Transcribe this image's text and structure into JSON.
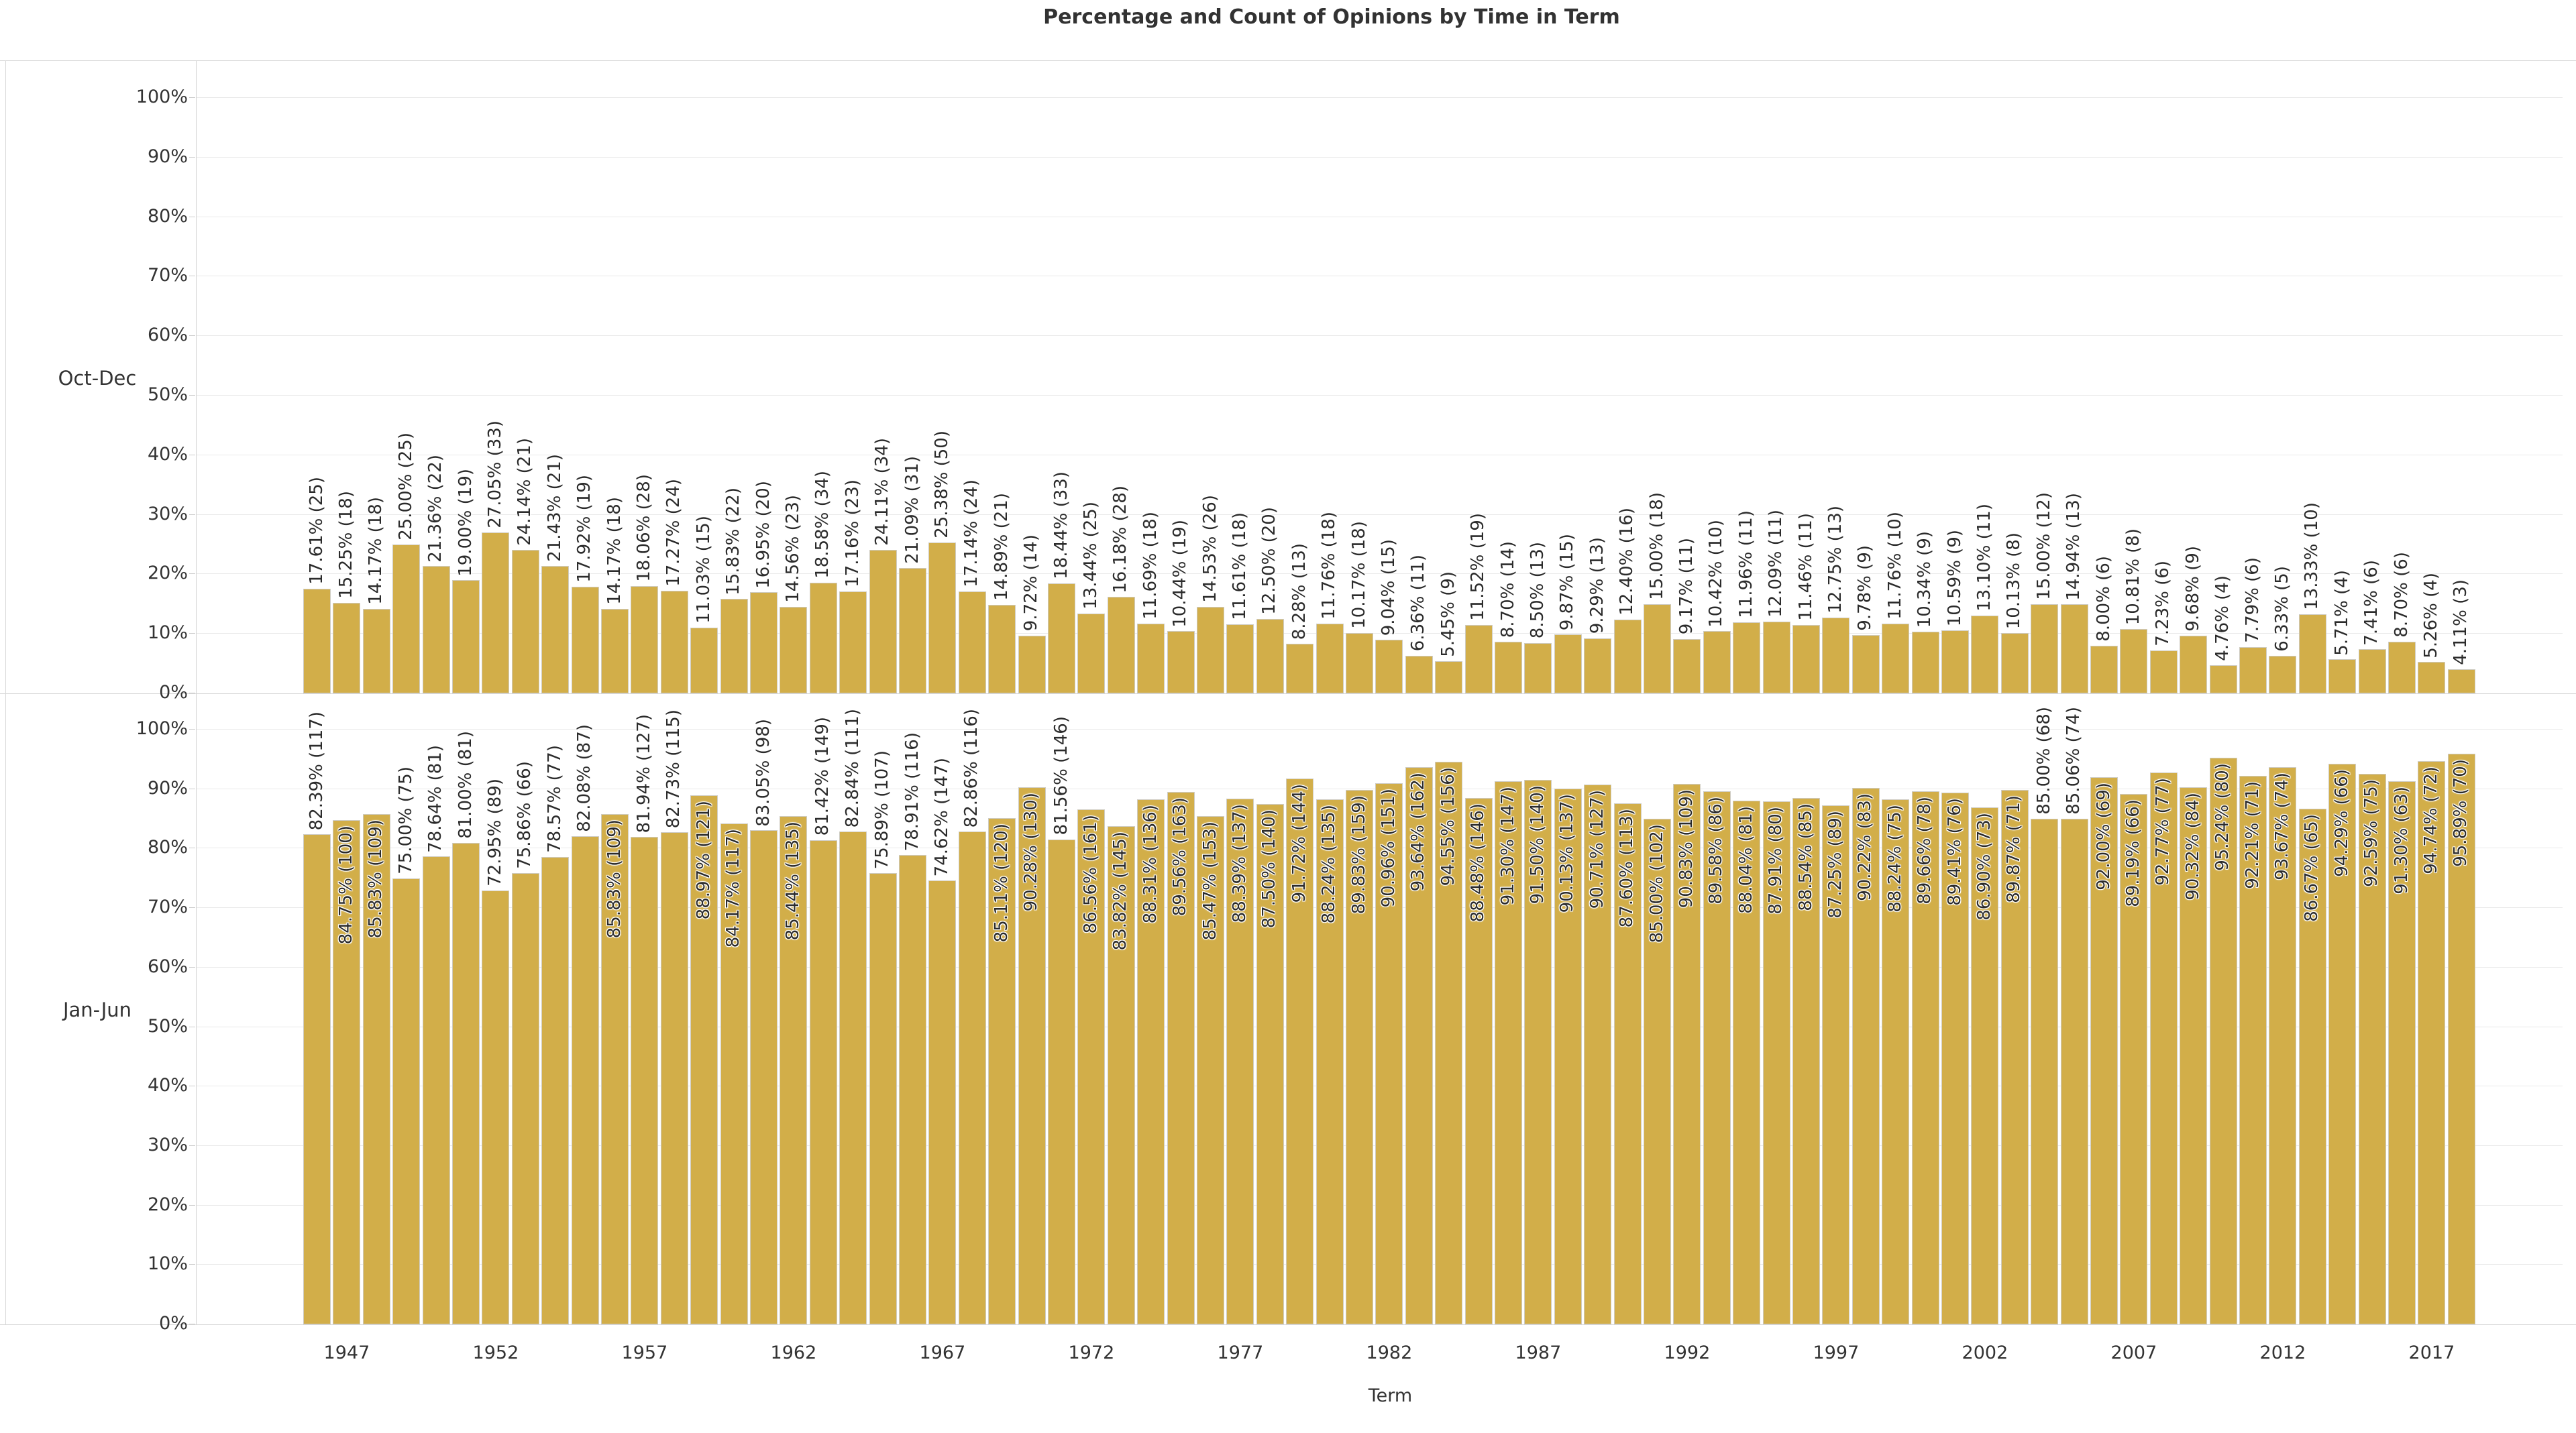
{
  "title": "Percentage and Count of Opinions by Time in Term",
  "x_axis": {
    "label": "Term",
    "labeled_years": [
      1947,
      1952,
      1957,
      1962,
      1967,
      1972,
      1977,
      1982,
      1987,
      1992,
      1997,
      2002,
      2007,
      2012,
      2017
    ]
  },
  "y_axis": {
    "tick_labels": [
      "0%",
      "10%",
      "20%",
      "30%",
      "40%",
      "50%",
      "60%",
      "70%",
      "80%",
      "90%",
      "100%"
    ]
  },
  "panels": [
    {
      "row_label": "Oct-Dec"
    },
    {
      "row_label": "Jan-Jun"
    }
  ],
  "colors": {
    "bar_fill": "#d2ae49",
    "bar_border": "#cfccc2",
    "gridline": "#e9e9e9",
    "axis_line": "#d2d2d2",
    "text": "#333333",
    "bar_label_text": "#2b2b2b"
  },
  "chart_data": {
    "type": "bar",
    "title": "Percentage and Count of Opinions by Time in Term",
    "xlabel": "Term",
    "ylabel": "",
    "ylim": [
      0,
      100
    ],
    "grid": true,
    "x": [
      1946,
      1947,
      1948,
      1949,
      1950,
      1951,
      1952,
      1953,
      1954,
      1955,
      1956,
      1957,
      1958,
      1959,
      1960,
      1961,
      1962,
      1963,
      1964,
      1965,
      1966,
      1967,
      1968,
      1969,
      1970,
      1971,
      1972,
      1973,
      1974,
      1975,
      1976,
      1977,
      1978,
      1979,
      1980,
      1981,
      1982,
      1983,
      1984,
      1985,
      1986,
      1987,
      1988,
      1989,
      1990,
      1991,
      1992,
      1993,
      1994,
      1995,
      1996,
      1997,
      1998,
      1999,
      2000,
      2001,
      2002,
      2003,
      2004,
      2005,
      2006,
      2007,
      2008,
      2009,
      2010,
      2011,
      2012,
      2013,
      2014,
      2015,
      2016,
      2017,
      2018
    ],
    "series": [
      {
        "name": "Oct-Dec",
        "percent": [
          "17.61",
          "15.25",
          "14.17",
          "25.00",
          "21.36",
          "19.00",
          "27.05",
          "24.14",
          "21.43",
          "17.92",
          "14.17",
          "18.06",
          "17.27",
          "11.03",
          "15.83",
          "16.95",
          "14.56",
          "18.58",
          "17.16",
          "24.11",
          "21.09",
          "25.38",
          "17.14",
          "14.89",
          "9.72",
          "18.44",
          "13.44",
          "16.18",
          "11.69",
          "10.44",
          "14.53",
          "11.61",
          "12.50",
          "8.28",
          "11.76",
          "10.17",
          "9.04",
          "6.36",
          "5.45",
          "11.52",
          "8.70",
          "8.50",
          "9.87",
          "9.29",
          "12.40",
          "15.00",
          "9.17",
          "10.42",
          "11.96",
          "12.09",
          "11.46",
          "12.75",
          "9.78",
          "11.76",
          "10.34",
          "10.59",
          "13.10",
          "10.13",
          "15.00",
          "14.94",
          "8.00",
          "10.81",
          "7.23",
          "9.68",
          "4.76",
          "7.79",
          "6.33",
          "13.33",
          "5.71",
          "7.41",
          "8.70",
          "5.26",
          "4.11"
        ],
        "count": [
          25,
          18,
          18,
          25,
          22,
          19,
          33,
          21,
          21,
          19,
          18,
          28,
          24,
          15,
          22,
          20,
          23,
          34,
          23,
          34,
          31,
          50,
          24,
          21,
          14,
          33,
          25,
          28,
          18,
          19,
          26,
          18,
          20,
          13,
          18,
          18,
          15,
          11,
          9,
          19,
          14,
          13,
          15,
          13,
          16,
          18,
          11,
          10,
          11,
          11,
          11,
          13,
          9,
          10,
          9,
          9,
          11,
          8,
          12,
          13,
          6,
          8,
          6,
          9,
          4,
          6,
          5,
          10,
          4,
          6,
          6,
          4,
          3
        ],
        "label_pos": [
          "a",
          "a",
          "a",
          "a",
          "a",
          "a",
          "a",
          "a",
          "a",
          "a",
          "a",
          "a",
          "a",
          "a",
          "a",
          "a",
          "a",
          "a",
          "a",
          "a",
          "a",
          "a",
          "a",
          "a",
          "a",
          "a",
          "a",
          "a",
          "a",
          "a",
          "a",
          "a",
          "a",
          "a",
          "a",
          "a",
          "a",
          "a",
          "a",
          "a",
          "a",
          "a",
          "a",
          "a",
          "a",
          "a",
          "a",
          "a",
          "a",
          "a",
          "a",
          "a",
          "a",
          "a",
          "a",
          "a",
          "a",
          "a",
          "a",
          "a",
          "a",
          "a",
          "a",
          "a",
          "a",
          "a",
          "a",
          "a",
          "a",
          "a",
          "a",
          "a",
          "a"
        ]
      },
      {
        "name": "Jan-Jun",
        "percent": [
          "82.39",
          "84.75",
          "85.83",
          "75.00",
          "78.64",
          "81.00",
          "72.95",
          "75.86",
          "78.57",
          "82.08",
          "85.83",
          "81.94",
          "82.73",
          "88.97",
          "84.17",
          "83.05",
          "85.44",
          "81.42",
          "82.84",
          "75.89",
          "78.91",
          "74.62",
          "82.86",
          "85.11",
          "90.28",
          "81.56",
          "86.56",
          "83.82",
          "88.31",
          "89.56",
          "85.47",
          "88.39",
          "87.50",
          "91.72",
          "88.24",
          "89.83",
          "90.96",
          "93.64",
          "94.55",
          "88.48",
          "91.30",
          "91.50",
          "90.13",
          "90.71",
          "87.60",
          "85.00",
          "90.83",
          "89.58",
          "88.04",
          "87.91",
          "88.54",
          "87.25",
          "90.22",
          "88.24",
          "89.66",
          "89.41",
          "86.90",
          "89.87",
          "85.00",
          "85.06",
          "92.00",
          "89.19",
          "92.77",
          "90.32",
          "95.24",
          "92.21",
          "93.67",
          "86.67",
          "94.29",
          "92.59",
          "91.30",
          "94.74",
          "95.89"
        ],
        "count": [
          117,
          100,
          109,
          75,
          81,
          81,
          89,
          66,
          77,
          87,
          109,
          127,
          115,
          121,
          117,
          98,
          135,
          149,
          111,
          107,
          116,
          147,
          116,
          120,
          130,
          146,
          161,
          145,
          136,
          163,
          153,
          137,
          140,
          144,
          135,
          159,
          151,
          162,
          156,
          146,
          147,
          140,
          137,
          127,
          113,
          102,
          109,
          86,
          81,
          80,
          85,
          89,
          83,
          75,
          78,
          76,
          73,
          71,
          68,
          74,
          69,
          66,
          77,
          84,
          80,
          71,
          74,
          65,
          66,
          75,
          63,
          72,
          70
        ],
        "label_pos": [
          "a",
          "i",
          "i",
          "a",
          "a",
          "a",
          "a",
          "a",
          "a",
          "a",
          "i",
          "a",
          "a",
          "i",
          "i",
          "a",
          "i",
          "a",
          "a",
          "a",
          "a",
          "a",
          "a",
          "i",
          "i",
          "a",
          "i",
          "i",
          "i",
          "i",
          "i",
          "i",
          "i",
          "i",
          "i",
          "i",
          "i",
          "i",
          "i",
          "i",
          "i",
          "i",
          "i",
          "i",
          "i",
          "i",
          "i",
          "i",
          "i",
          "i",
          "i",
          "i",
          "i",
          "i",
          "i",
          "i",
          "i",
          "i",
          "a",
          "a",
          "i",
          "i",
          "i",
          "i",
          "i",
          "i",
          "i",
          "i",
          "i",
          "i",
          "i",
          "i",
          "i"
        ]
      }
    ]
  }
}
